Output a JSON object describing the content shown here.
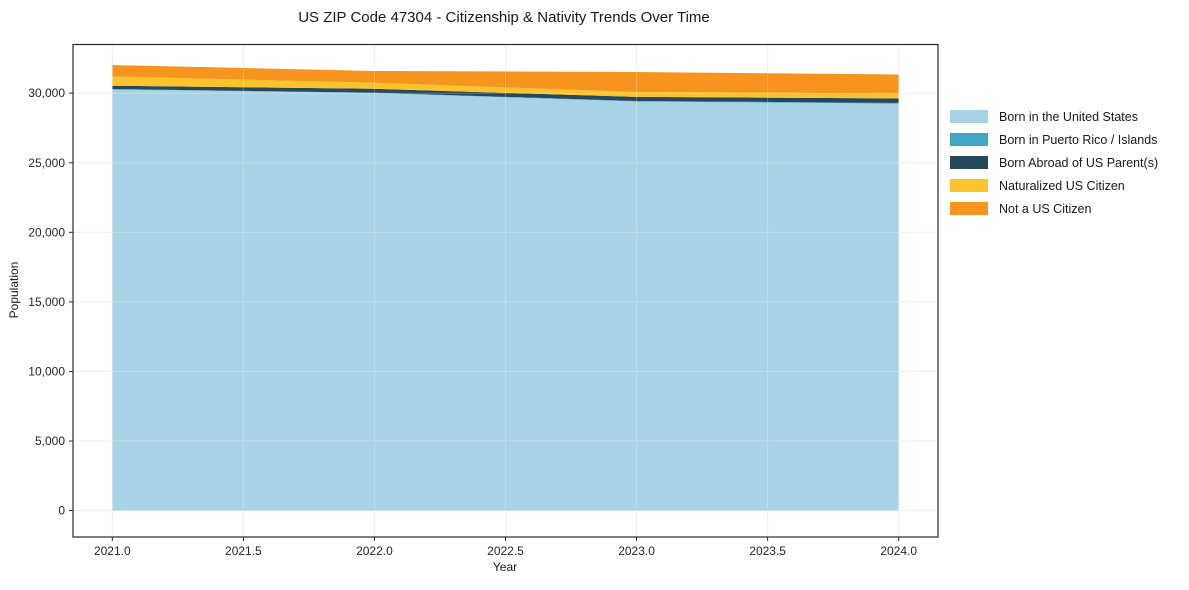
{
  "chart_data": {
    "type": "area",
    "stacked": true,
    "title": "US ZIP Code 47304 - Citizenship & Nativity Trends Over Time",
    "xlabel": "Year",
    "ylabel": "Population",
    "x": [
      2021,
      2022,
      2023,
      2024
    ],
    "series": [
      {
        "name": "Born in the United States",
        "color": "#a8d2e5",
        "values": [
          30272,
          30014,
          29401,
          29244
        ]
      },
      {
        "name": "Born in Puerto Rico / Islands",
        "color": "#41a6c4",
        "values": [
          21,
          18,
          39,
          61
        ]
      },
      {
        "name": "Born Abroad of US Parent(s)",
        "color": "#27475a",
        "values": [
          243,
          287,
          291,
          318
        ]
      },
      {
        "name": "Naturalized US Citizen",
        "color": "#fbc32c",
        "values": [
          672,
          431,
          358,
          360
        ]
      },
      {
        "name": "Not a US Citizen",
        "color": "#f7941e",
        "values": [
          812,
          843,
          1432,
          1361
        ]
      }
    ],
    "xlim": [
      2020.85,
      2024.15
    ],
    "ylim": [
      -1900,
      33500
    ],
    "xticks": [
      2021.0,
      2021.5,
      2022.0,
      2022.5,
      2023.0,
      2023.5,
      2024.0
    ],
    "xtick_labels": [
      "2021.0",
      "2021.5",
      "2022.0",
      "2022.5",
      "2023.0",
      "2023.5",
      "2024.0"
    ],
    "yticks": [
      0,
      5000,
      10000,
      15000,
      20000,
      25000,
      30000
    ],
    "ytick_labels": [
      "0",
      "5,000",
      "10,000",
      "15,000",
      "20,000",
      "25,000",
      "30,000"
    ],
    "grid": true,
    "legend_position": "right",
    "colors": {
      "frame": "#2b2b2b",
      "grid_under": "#ebebeb",
      "grid_over": "rgba(255,255,255,0.25)",
      "tick": "#2b2b2b",
      "tick_label": "#262626"
    }
  }
}
